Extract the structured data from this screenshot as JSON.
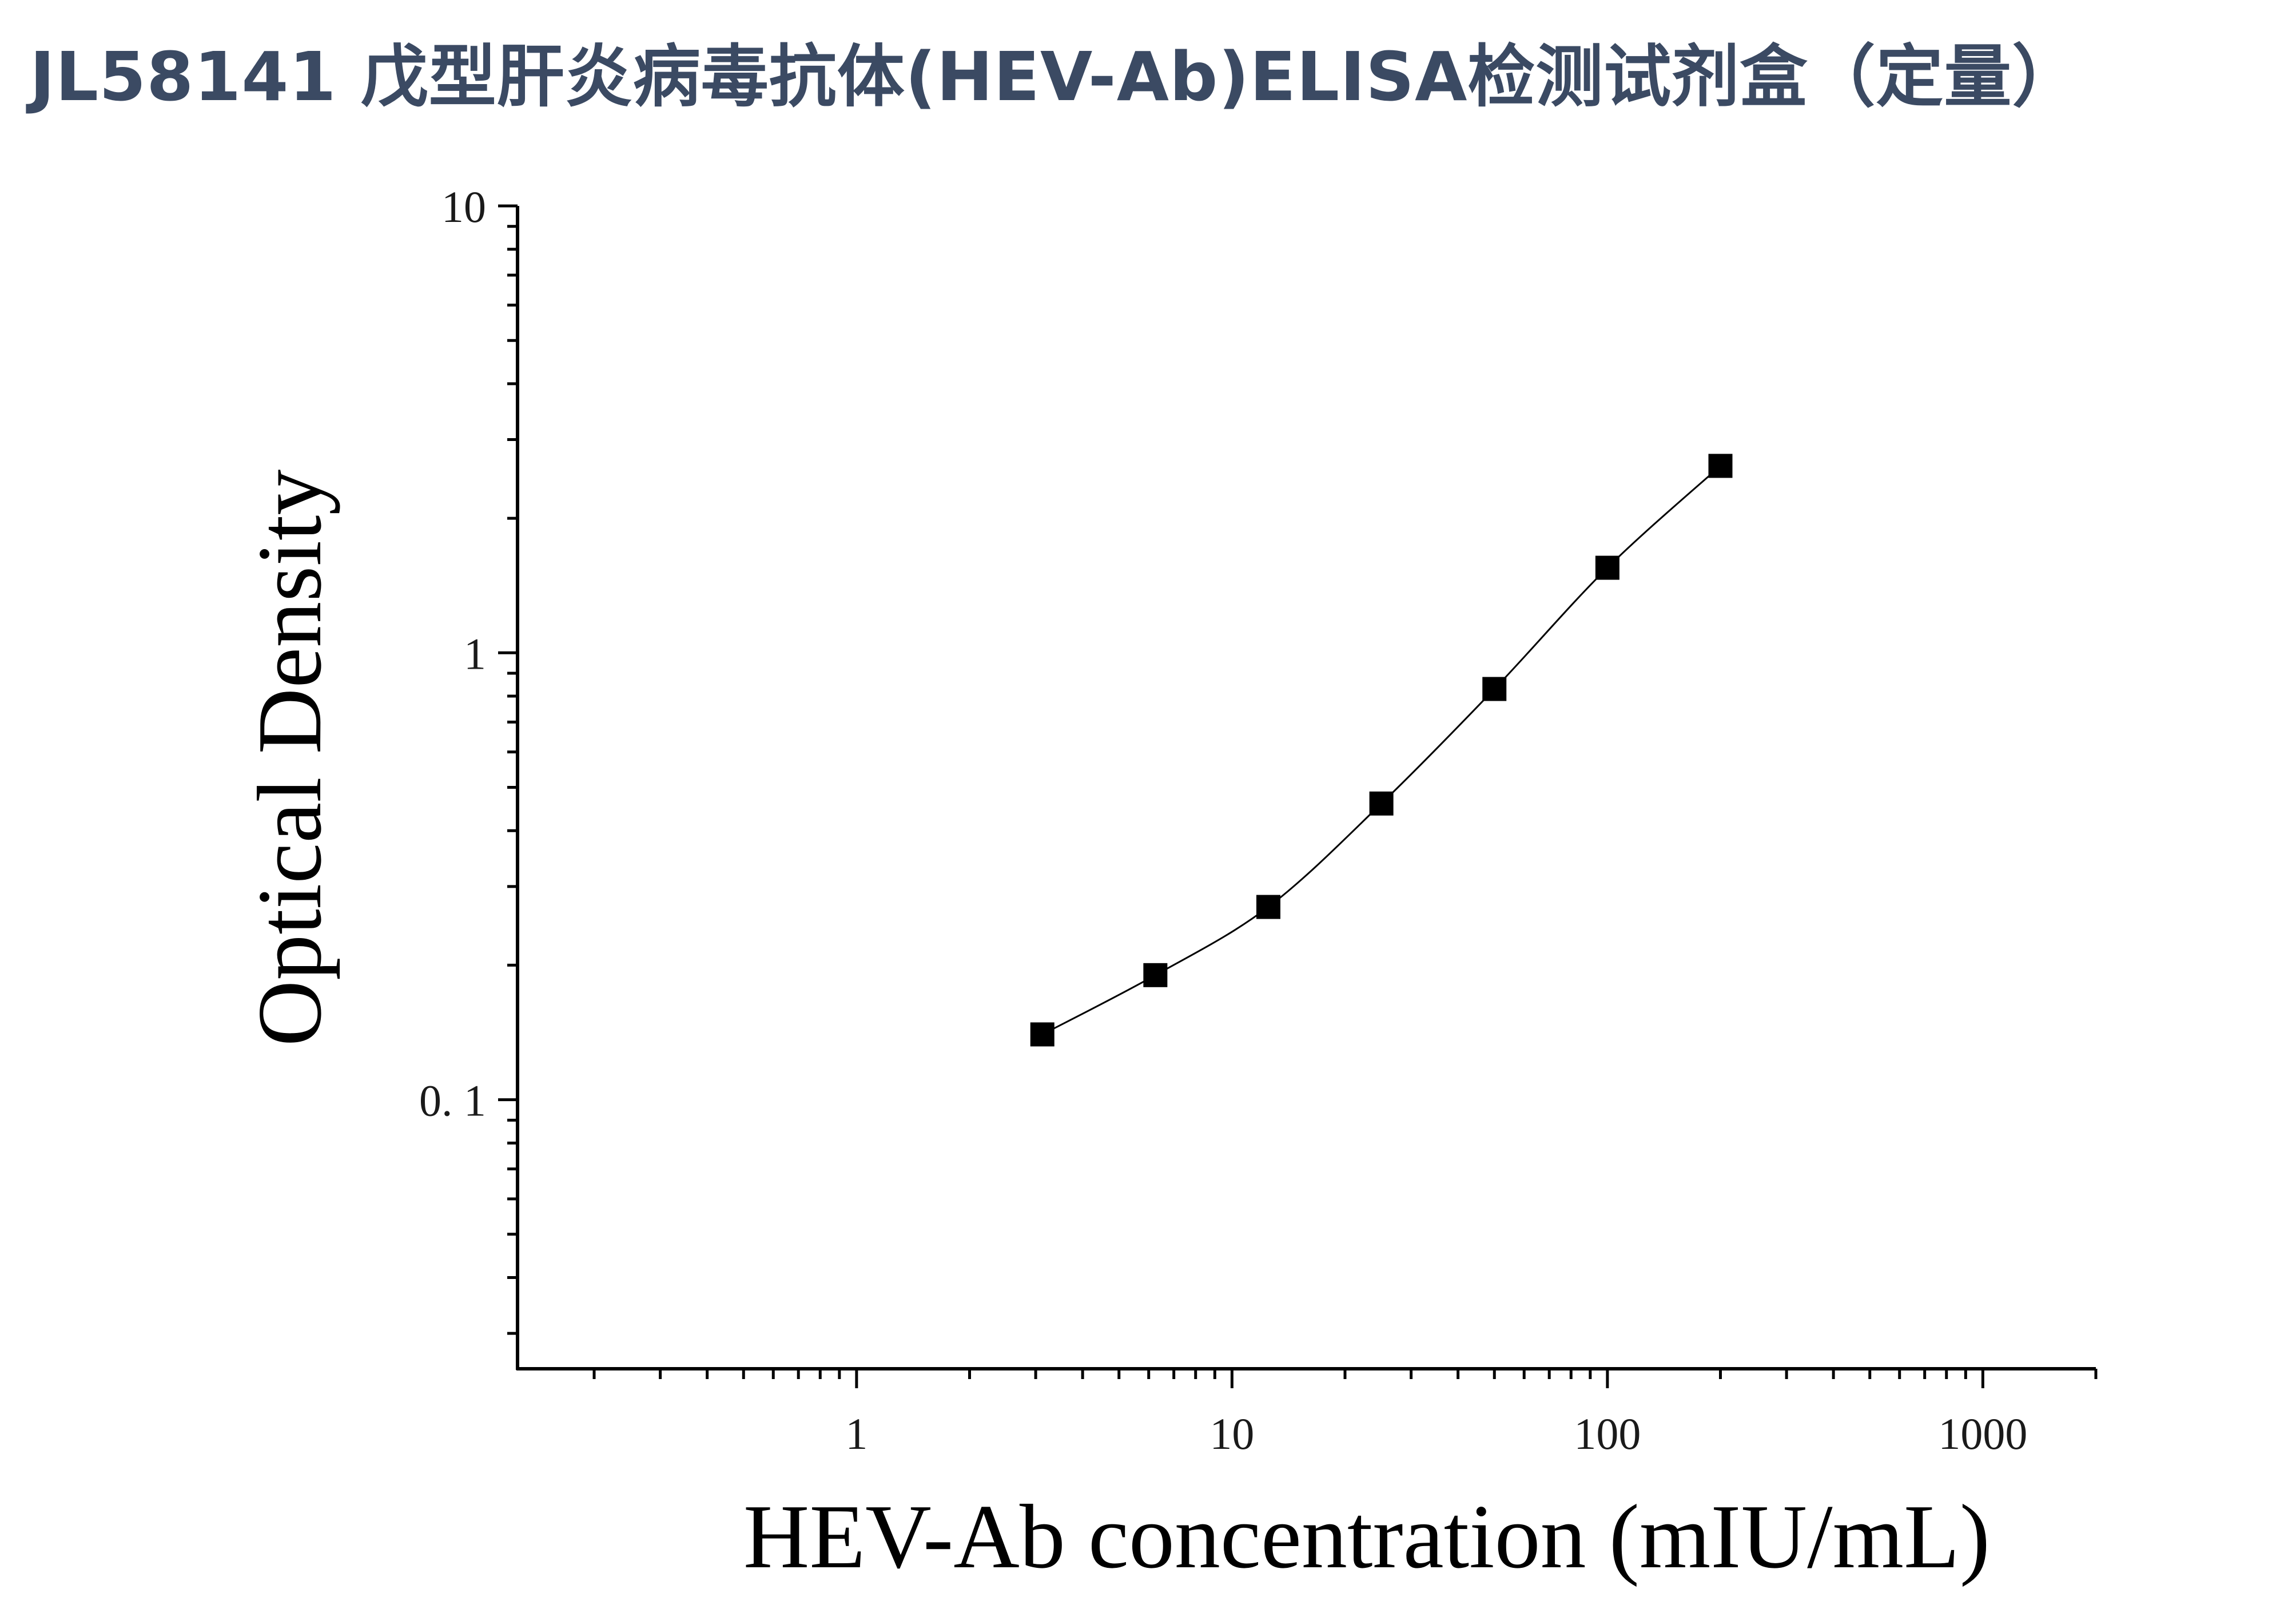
{
  "header": {
    "title": "JL58141 戊型肝炎病毒抗体(HEV-Ab)ELISA检测试剂盒（定量）"
  },
  "chart_data": {
    "type": "scatter",
    "title": "",
    "xlabel": "HEV-Ab concentration (mIU/mL)",
    "ylabel": "Optical Density",
    "x_scale": "log",
    "y_scale": "log",
    "xlim": [
      0.125,
      2000
    ],
    "ylim": [
      0.025,
      10
    ],
    "x_ticks": [
      {
        "value": 1,
        "label": "1"
      },
      {
        "value": 10,
        "label": "10"
      },
      {
        "value": 100,
        "label": "100"
      },
      {
        "value": 1000,
        "label": "1000"
      }
    ],
    "y_ticks": [
      {
        "value": 0.1,
        "label": "0. 1"
      },
      {
        "value": 1,
        "label": "1"
      },
      {
        "value": 10,
        "label": "10"
      }
    ],
    "grid": false,
    "legend": "none",
    "marker": "square",
    "color": "#000000",
    "series": [
      {
        "x": [
          3.125,
          6.25,
          12.5,
          25,
          50,
          100,
          200
        ],
        "y": [
          0.14,
          0.19,
          0.27,
          0.46,
          0.83,
          1.55,
          2.62
        ],
        "fit_curve": true
      }
    ]
  }
}
